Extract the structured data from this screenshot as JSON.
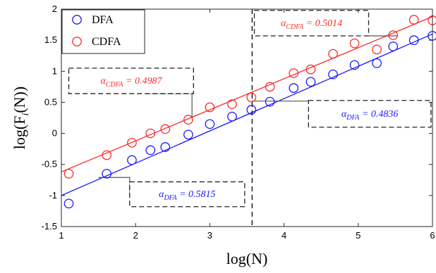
{
  "chart_data": {
    "type": "scatter",
    "xlabel": "log(N)",
    "ylabel": "log(F_i(N))",
    "xlim": [
      1,
      6
    ],
    "ylim": [
      -1.5,
      2
    ],
    "xticks": [
      "1",
      "2",
      "3",
      "4",
      "5",
      "6"
    ],
    "yticks": [
      "-1.5",
      "-1",
      "-0.5",
      "0",
      "0.5",
      "1",
      "1.5",
      "2"
    ],
    "grid": false,
    "legend_position": "top-left",
    "crossover_x": 3.57,
    "series": [
      {
        "name": "DFA",
        "color": "#1a1aff",
        "marker": "circle",
        "points": [
          [
            1.1,
            -1.13
          ],
          [
            1.61,
            -0.65
          ],
          [
            1.95,
            -0.43
          ],
          [
            2.2,
            -0.27
          ],
          [
            2.4,
            -0.22
          ],
          [
            2.71,
            -0.02
          ],
          [
            3.0,
            0.15
          ],
          [
            3.3,
            0.27
          ],
          [
            3.56,
            0.38
          ],
          [
            3.81,
            0.51
          ],
          [
            4.13,
            0.73
          ],
          [
            4.36,
            0.83
          ],
          [
            4.66,
            0.95
          ],
          [
            4.95,
            1.1
          ],
          [
            5.25,
            1.13
          ],
          [
            5.47,
            1.4
          ],
          [
            5.75,
            1.5
          ],
          [
            6.0,
            1.57
          ]
        ]
      },
      {
        "name": "CDFA",
        "color": "#ff2a2a",
        "marker": "circle",
        "points": [
          [
            1.1,
            -0.65
          ],
          [
            1.61,
            -0.35
          ],
          [
            1.95,
            -0.15
          ],
          [
            2.2,
            0.0
          ],
          [
            2.4,
            0.07
          ],
          [
            2.71,
            0.22
          ],
          [
            3.0,
            0.42
          ],
          [
            3.3,
            0.47
          ],
          [
            3.56,
            0.58
          ],
          [
            3.81,
            0.75
          ],
          [
            4.13,
            0.97
          ],
          [
            4.36,
            1.03
          ],
          [
            4.66,
            1.28
          ],
          [
            4.95,
            1.45
          ],
          [
            5.25,
            1.35
          ],
          [
            5.47,
            1.58
          ],
          [
            5.75,
            1.83
          ],
          [
            6.0,
            1.82
          ]
        ]
      }
    ],
    "fit_lines": [
      {
        "series": "DFA",
        "x": [
          1.0,
          6.0
        ],
        "y": [
          -1.0,
          1.6
        ],
        "color": "#1a1aff"
      },
      {
        "series": "CDFA",
        "x": [
          1.0,
          6.0
        ],
        "y": [
          -0.62,
          1.88
        ],
        "color": "#ff2a2a"
      }
    ],
    "annotations": [
      {
        "id": "dfa-left",
        "label_html": "α<tspan dy='4' font-size='10'>DFA</tspan><tspan dy='-4'> = 0.5815</tspan>",
        "text": "αDFA = 0.5815",
        "color": "#1a1aff",
        "box": [
          1.92,
          -0.78,
          3.47,
          -1.18
        ],
        "leader": [
          [
            1.5,
            -0.71
          ],
          [
            1.92,
            -0.71
          ],
          [
            1.92,
            -1.0
          ]
        ]
      },
      {
        "id": "cdfa-left",
        "label_html": "α<tspan dy='4' font-size='10'>CDFA</tspan><tspan dy='-4'> = 0.4987</tspan>",
        "text": "αCDFA = 0.4987",
        "color": "#ff2a2a",
        "box": [
          1.1,
          1.05,
          2.78,
          0.64
        ],
        "leader": [
          [
            2.15,
            0.64
          ],
          [
            2.76,
            0.64
          ],
          [
            2.76,
            0.24
          ]
        ]
      },
      {
        "id": "dfa-right",
        "label_html": "α<tspan dy='4' font-size='10'>DFA</tspan><tspan dy='-4'> = 0.4836</tspan>",
        "text": "αDFA = 0.4836",
        "color": "#1a1aff",
        "box": [
          4.33,
          0.53,
          5.98,
          0.1
        ],
        "leader": [
          [
            3.57,
            0.52
          ],
          [
            4.33,
            0.52
          ],
          [
            4.33,
            0.53
          ]
        ]
      },
      {
        "id": "cdfa-right",
        "label_html": "α<tspan dy='4' font-size='10'>CDFA</tspan><tspan dy='-4'> = 0.5014</tspan>",
        "text": "αCDFA = 0.5014",
        "color": "#ff2a2a",
        "box": [
          3.6,
          1.98,
          5.14,
          1.57
        ],
        "leader": [
          [
            5.14,
            1.57
          ],
          [
            5.52,
            1.57
          ]
        ]
      }
    ]
  }
}
